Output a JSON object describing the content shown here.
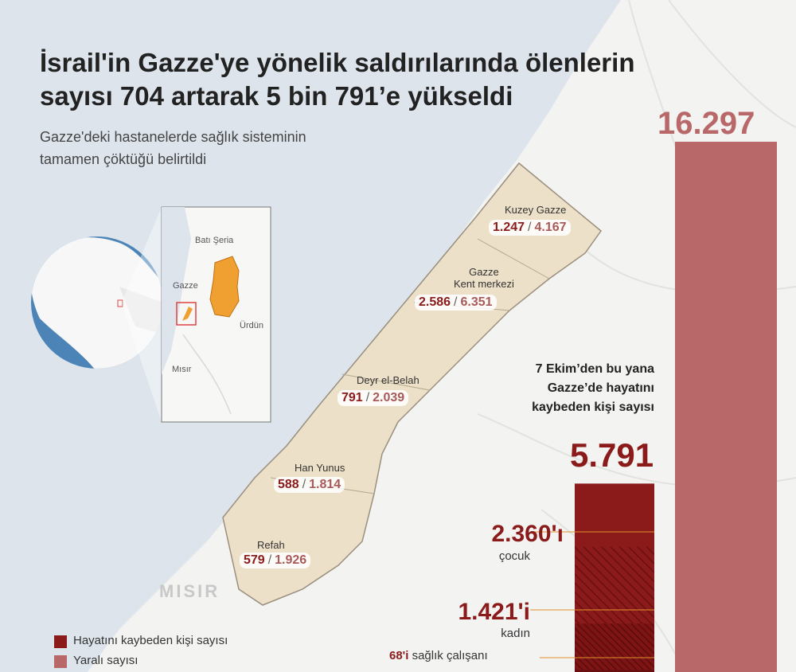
{
  "title_lines": [
    "İsrail'in Gazze'ye yönelik saldırılarında ölenlerin",
    "sayısı 704 artarak 5 bin 791’e yükseldi"
  ],
  "subtitle_lines": [
    "Gazze'deki hastanelerde sağlık sisteminin",
    "tamamen çöktüğü belirtildi"
  ],
  "inset_map": {
    "labels": {
      "west_bank": "Batı Şeria",
      "gaza": "Gazze",
      "jordan": "Ürdün",
      "egypt": "Mısır"
    }
  },
  "regions": [
    {
      "name_lines": [
        "Kuzey Gazze"
      ],
      "deaths": "1.247",
      "injured": "4.167"
    },
    {
      "name_lines": [
        "Gazze",
        "Kent merkezi"
      ],
      "deaths": "2.586",
      "injured": "6.351"
    },
    {
      "name_lines": [
        "Deyr el-Belah"
      ],
      "deaths": "791",
      "injured": "2.039"
    },
    {
      "name_lines": [
        "Han Yunus"
      ],
      "deaths": "588",
      "injured": "1.814"
    },
    {
      "name_lines": [
        "Refah"
      ],
      "deaths": "579",
      "injured": "1.926"
    }
  ],
  "separator": "/",
  "egypt_label": "MISIR",
  "since_text_lines": [
    "7 Ekim’den bu yana",
    "Gazze’de hayatını",
    "kaybeden kişi sayısı"
  ],
  "chart_data": {
    "type": "bar",
    "categories": [
      "Hayatını kaybeden kişi sayısı",
      "Yaralı sayısı"
    ],
    "values": [
      5791,
      16297
    ],
    "value_labels": [
      "5.791",
      "16.297"
    ],
    "breakdown": [
      {
        "value": 2360,
        "label_value": "2.360'ı",
        "label": "çocuk"
      },
      {
        "value": 1421,
        "label_value": "1.421'i",
        "label": "kadın"
      },
      {
        "value": 68,
        "label_value": "68'i",
        "label": "sağlık çalışanı"
      }
    ],
    "colors": {
      "deaths": "#8b1a1a",
      "injured": "#b86868"
    }
  },
  "legend": [
    {
      "label": "Hayatını kaybeden kişi sayısı",
      "color": "#8b1a1a"
    },
    {
      "label": "Yaralı sayısı",
      "color": "#b86868"
    }
  ],
  "colors": {
    "sea": "#dde4ec",
    "land": "#f3f3f1",
    "gaza_fill": "#ede0c8",
    "west_bank": "#f0a030",
    "accent_line": "#e0912f"
  }
}
